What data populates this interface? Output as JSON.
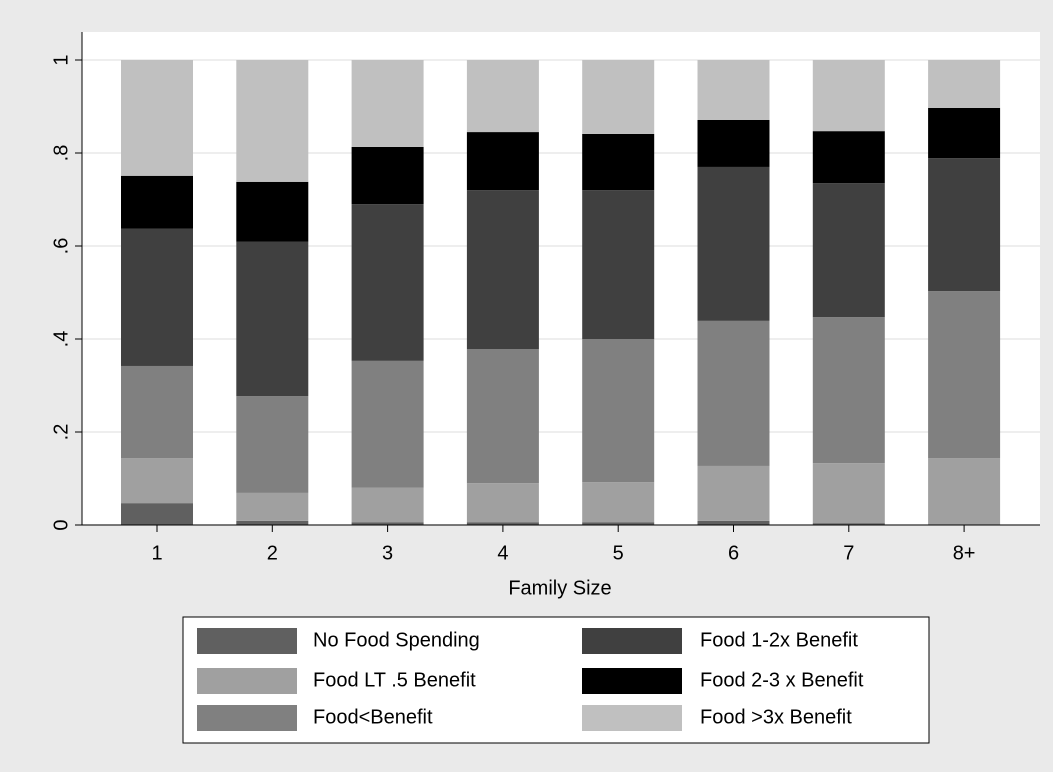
{
  "chart_data": {
    "type": "stacked-bar",
    "x_label": "Family Size",
    "categories": [
      "1",
      "2",
      "3",
      "4",
      "5",
      "6",
      "7",
      "8+"
    ],
    "series": [
      {
        "name": "No Food Spending",
        "color": "#606060",
        "values": [
          0.047,
          0.009,
          0.006,
          0.006,
          0.006,
          0.009,
          0.004,
          0.001
        ]
      },
      {
        "name": "Food LT .5 Benefit",
        "color": "#a0a0a0",
        "values": [
          0.097,
          0.06,
          0.074,
          0.084,
          0.086,
          0.118,
          0.129,
          0.143
        ]
      },
      {
        "name": "Food<Benefit",
        "color": "#808080",
        "values": [
          0.198,
          0.208,
          0.273,
          0.288,
          0.308,
          0.312,
          0.314,
          0.359
        ]
      },
      {
        "name": "Food 1-2x Benefit",
        "color": "#404040",
        "values": [
          0.295,
          0.332,
          0.337,
          0.342,
          0.32,
          0.331,
          0.288,
          0.286
        ]
      },
      {
        "name": "Food 2-3 x Benefit",
        "color": "#000000",
        "values": [
          0.114,
          0.129,
          0.123,
          0.125,
          0.121,
          0.101,
          0.112,
          0.108
        ]
      },
      {
        "name": "Food >3x Benefit",
        "color": "#c0c0c0",
        "values": [
          0.249,
          0.262,
          0.187,
          0.155,
          0.159,
          0.129,
          0.153,
          0.103
        ]
      }
    ],
    "ylim": [
      0,
      1
    ],
    "yticks": [
      0,
      {
        "value": 0.2,
        "label": ".2"
      },
      {
        "value": 0.4,
        "label": ".4"
      },
      {
        "value": 0.6,
        "label": ".6"
      },
      {
        "value": 0.8,
        "label": ".8"
      },
      1
    ],
    "grid": true
  }
}
